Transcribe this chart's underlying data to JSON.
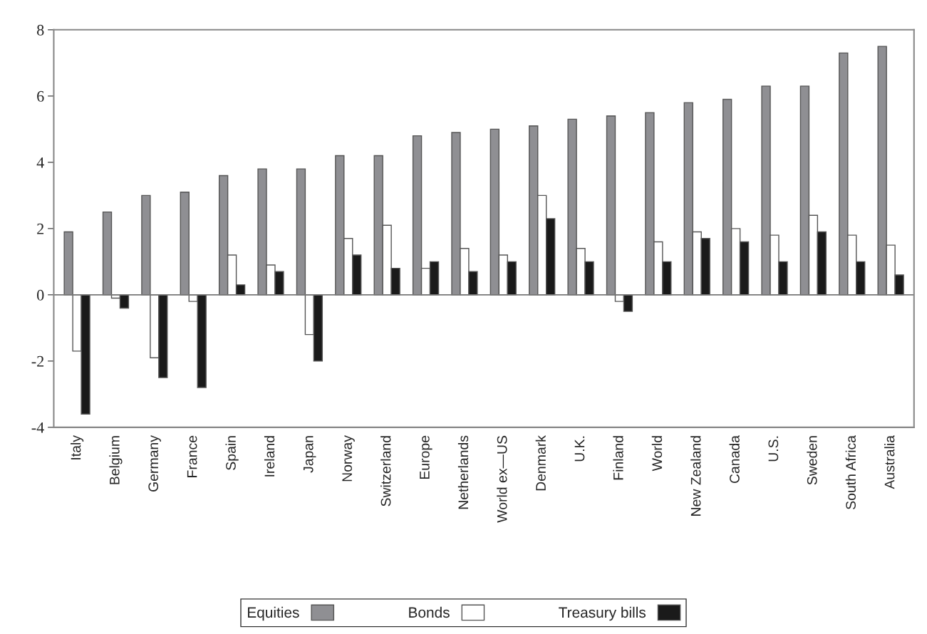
{
  "chart_data": {
    "type": "bar",
    "categories": [
      "Italy",
      "Belgium",
      "Germany",
      "France",
      "Spain",
      "Ireland",
      "Japan",
      "Norway",
      "Switzerland",
      "Europe",
      "Netherlands",
      "World ex—US",
      "Denmark",
      "U.K.",
      "Finland",
      "World",
      "New Zealand",
      "Canada",
      "U.S.",
      "Sweden",
      "South Africa",
      "Australia"
    ],
    "series": [
      {
        "name": "Equities",
        "color": "#8f8f93",
        "values": [
          1.9,
          2.5,
          3.0,
          3.1,
          3.6,
          3.8,
          3.8,
          4.2,
          4.2,
          4.8,
          4.9,
          5.0,
          5.1,
          5.3,
          5.4,
          5.5,
          5.8,
          5.9,
          6.3,
          6.3,
          7.3,
          7.5
        ]
      },
      {
        "name": "Bonds",
        "color": "#ffffff",
        "values": [
          -1.7,
          -0.1,
          -1.9,
          -0.2,
          1.2,
          0.9,
          -1.2,
          1.7,
          2.1,
          0.8,
          1.4,
          1.2,
          3.0,
          1.4,
          -0.2,
          1.6,
          1.9,
          2.0,
          1.8,
          2.4,
          1.8,
          1.5
        ]
      },
      {
        "name": "Treasury bills",
        "color": "#1a1a1a",
        "values": [
          -3.6,
          -0.4,
          -2.5,
          -2.8,
          0.3,
          0.7,
          -2.0,
          1.2,
          0.8,
          1.0,
          0.7,
          1.0,
          2.3,
          1.0,
          -0.5,
          1.0,
          1.7,
          1.6,
          1.0,
          1.9,
          1.0,
          0.6
        ]
      }
    ],
    "ylim": [
      -4,
      8
    ],
    "yticks": [
      -4,
      -2,
      0,
      2,
      4,
      6,
      8
    ],
    "ref_lines": [
      {
        "axis": "y",
        "value": 0,
        "color": "#777777"
      }
    ],
    "legend": "bottom"
  }
}
